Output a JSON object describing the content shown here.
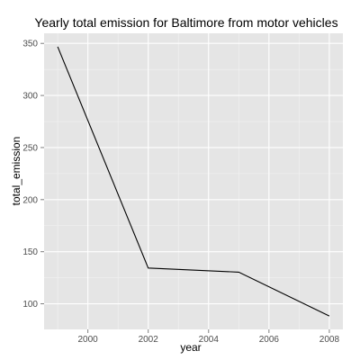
{
  "chart_data": {
    "type": "line",
    "title": "Yearly total emission for Baltimore from motor vehicles",
    "xlabel": "year",
    "ylabel": "total_emission",
    "x": [
      1999,
      2002,
      2005,
      2008
    ],
    "y": [
      346.8,
      134.3,
      130.4,
      88.3
    ],
    "xlim": [
      1998.55,
      2008.45
    ],
    "ylim": [
      75.4,
      359.7
    ],
    "xticks": [
      2000,
      2002,
      2004,
      2006,
      2008
    ],
    "yticks": [
      100,
      150,
      200,
      250,
      300,
      350
    ],
    "grid": true,
    "legend": "none",
    "colors": {
      "panel": "#e5e5e5",
      "grid_major": "#ffffff",
      "grid_minor": "#f2f2f2",
      "line": "#000000"
    }
  }
}
